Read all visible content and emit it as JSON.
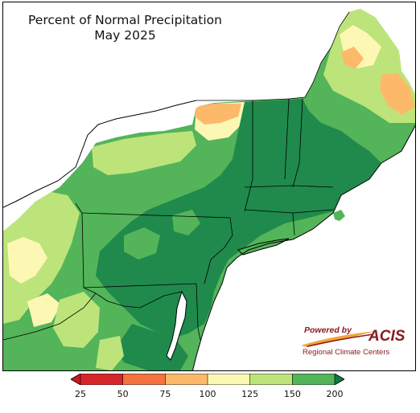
{
  "title": {
    "line1": "Percent of Normal Precipitation",
    "line2": "May 2025"
  },
  "logo": {
    "powered_by": "Powered by",
    "name": "ACIS",
    "subtitle": "Regional Climate Centers"
  },
  "legend": {
    "ticks": [
      "25",
      "50",
      "75",
      "100",
      "125",
      "150",
      "200"
    ],
    "tick_values": [
      25,
      50,
      75,
      100,
      125,
      150,
      200
    ],
    "colors": [
      "#d7262a",
      "#f4733f",
      "#fdb96a",
      "#fdf7b4",
      "#bde47a",
      "#53b45a",
      "#19874a"
    ],
    "below_color": "#c51a1f",
    "above_color": "#0f7a3f"
  },
  "map_colors": {
    "water": "#ffffff",
    "land_dark_green": "#1f8a4c",
    "land_green": "#53b45a",
    "land_light_green": "#bde47a",
    "land_pale_yellow": "#fdf7b4",
    "land_orange": "#fdb96a",
    "land_dark_orange": "#f4733f",
    "boundary": "#000000"
  }
}
